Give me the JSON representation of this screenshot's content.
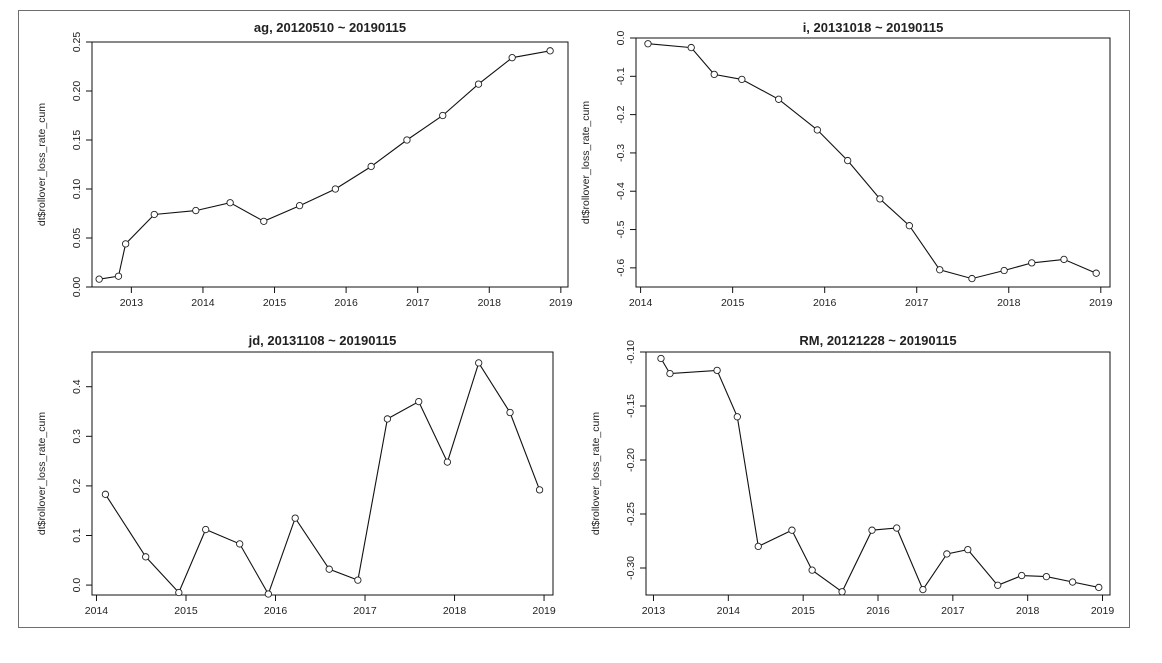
{
  "chart_data": [
    {
      "type": "line",
      "title": "ag, 20120510 ~ 20190115",
      "xlabel": "",
      "ylabel": "dt$rollover_loss_rate_cum",
      "xlim": [
        2012.45,
        2019.1
      ],
      "ylim": [
        0.0,
        0.25
      ],
      "xticks": [
        2013,
        2014,
        2015,
        2016,
        2017,
        2018,
        2019
      ],
      "yticks": [
        "0.00",
        "0.05",
        "0.10",
        "0.15",
        "0.20",
        "0.25"
      ],
      "x": [
        2012.55,
        2012.82,
        2012.92,
        2013.32,
        2013.9,
        2014.38,
        2014.85,
        2015.35,
        2015.85,
        2016.35,
        2016.85,
        2017.35,
        2017.85,
        2018.32,
        2018.85
      ],
      "y": [
        0.008,
        0.011,
        0.044,
        0.074,
        0.078,
        0.086,
        0.067,
        0.083,
        0.1,
        0.123,
        0.15,
        0.175,
        0.207,
        0.234,
        0.241
      ]
    },
    {
      "type": "line",
      "title": "i, 20131018 ~ 20190115",
      "xlabel": "",
      "ylabel": "dt$rollover_loss_rate_cum",
      "xlim": [
        2013.95,
        2019.1
      ],
      "ylim": [
        -0.65,
        0.0
      ],
      "xticks": [
        2014,
        2015,
        2016,
        2017,
        2018,
        2019
      ],
      "yticks": [
        "0.0",
        "-0.1",
        "-0.2",
        "-0.3",
        "-0.4",
        "-0.5",
        "-0.6"
      ],
      "x": [
        2014.08,
        2014.55,
        2014.8,
        2015.1,
        2015.5,
        2015.92,
        2016.25,
        2016.6,
        2016.92,
        2017.25,
        2017.6,
        2017.95,
        2018.25,
        2018.6,
        2018.95
      ],
      "y": [
        -0.015,
        -0.025,
        -0.095,
        -0.108,
        -0.16,
        -0.24,
        -0.32,
        -0.42,
        -0.49,
        -0.605,
        -0.628,
        -0.607,
        -0.587,
        -0.578,
        -0.614
      ]
    },
    {
      "type": "line",
      "title": "jd, 20131108 ~ 20190115",
      "xlabel": "",
      "ylabel": "dt$rollover_loss_rate_cum",
      "xlim": [
        2013.95,
        2019.1
      ],
      "ylim": [
        -0.02,
        0.47
      ],
      "xticks": [
        2014,
        2015,
        2016,
        2017,
        2018,
        2019
      ],
      "yticks": [
        "0.0",
        "0.1",
        "0.2",
        "0.3",
        "0.4"
      ],
      "x": [
        2014.1,
        2014.55,
        2014.92,
        2015.22,
        2015.6,
        2015.92,
        2016.22,
        2016.6,
        2016.92,
        2017.25,
        2017.6,
        2017.92,
        2018.27,
        2018.62,
        2018.95
      ],
      "y": [
        0.183,
        0.057,
        -0.015,
        0.112,
        0.083,
        -0.018,
        0.135,
        0.032,
        0.01,
        0.335,
        0.37,
        0.248,
        0.448,
        0.348,
        0.192
      ]
    },
    {
      "type": "line",
      "title": "RM, 20121228 ~ 20190115",
      "xlabel": "",
      "ylabel": "dt$rollover_loss_rate_cum",
      "xlim": [
        2012.9,
        2019.1
      ],
      "ylim": [
        -0.325,
        -0.1
      ],
      "xticks": [
        2013,
        2014,
        2015,
        2016,
        2017,
        2018,
        2019
      ],
      "yticks": [
        "-0.10",
        "-0.15",
        "-0.20",
        "-0.25",
        "-0.30"
      ],
      "x": [
        2013.1,
        2013.22,
        2013.85,
        2014.12,
        2014.4,
        2014.85,
        2015.12,
        2015.52,
        2015.92,
        2016.25,
        2016.6,
        2016.92,
        2017.2,
        2017.6,
        2017.92,
        2018.25,
        2018.6,
        2018.95
      ],
      "y": [
        -0.106,
        -0.12,
        -0.117,
        -0.16,
        -0.28,
        -0.265,
        -0.302,
        -0.322,
        -0.265,
        -0.263,
        -0.32,
        -0.287,
        -0.283,
        -0.316,
        -0.307,
        -0.308,
        -0.313,
        -0.318
      ]
    }
  ]
}
